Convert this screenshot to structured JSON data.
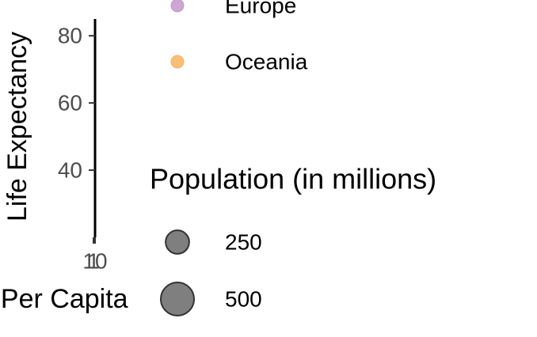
{
  "chart_data": {
    "type": "scatter",
    "x_label": "GDP Per Capita",
    "y_label": "Life Expectancy",
    "xlim": [
      1,
      10
    ],
    "xticks": [
      1,
      10
    ],
    "log_x": true,
    "ylim": [
      20,
      85
    ],
    "yticks": [
      40,
      60,
      80
    ],
    "series": [
      {
        "name": "Europe",
        "color": "#c497c9",
        "x": [],
        "values": []
      },
      {
        "name": "Oceania",
        "color": "#f8b35f",
        "x": [],
        "values": []
      }
    ],
    "size_legend": {
      "title": "Population (in millions)",
      "values": [
        250,
        500
      ]
    }
  }
}
